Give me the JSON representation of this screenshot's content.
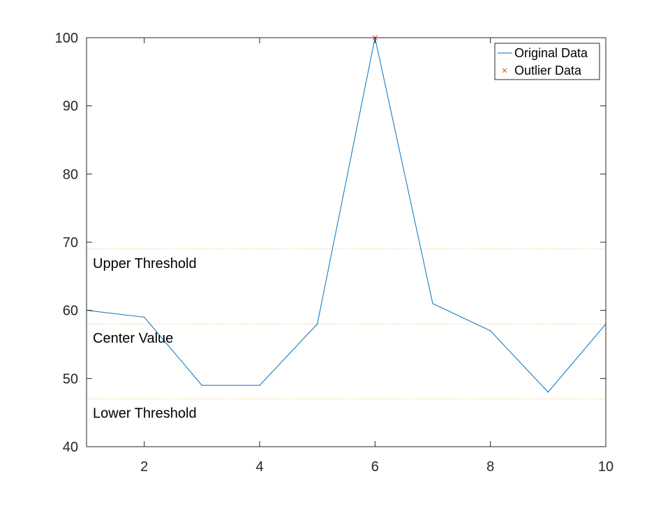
{
  "chart_data": {
    "type": "line",
    "title": "",
    "xlabel": "",
    "ylabel": "",
    "xlim": [
      1,
      10
    ],
    "ylim": [
      40,
      100
    ],
    "x_ticks": [
      2,
      4,
      6,
      8,
      10
    ],
    "y_ticks": [
      40,
      50,
      60,
      70,
      80,
      90,
      100
    ],
    "x_tick_labels": [
      "2",
      "4",
      "6",
      "8",
      "10"
    ],
    "y_tick_labels": [
      "40",
      "50",
      "60",
      "70",
      "80",
      "90",
      "100"
    ],
    "grid": false,
    "legend_position": "top-right",
    "series": [
      {
        "name": "Original Data",
        "type": "line",
        "color": "#0072BD",
        "x": [
          1,
          2,
          3,
          4,
          5,
          6,
          7,
          8,
          9,
          10
        ],
        "y": [
          60,
          59,
          49,
          49,
          58,
          100,
          61,
          57,
          48,
          58
        ]
      },
      {
        "name": "Outlier Data",
        "type": "scatter",
        "marker": "x",
        "color": "#D95319",
        "x": [
          6
        ],
        "y": [
          100
        ]
      }
    ],
    "reference_lines": [
      {
        "label": "Upper Threshold",
        "y": 69,
        "color": "#EDB120",
        "style": "dotted"
      },
      {
        "label": "Center Value",
        "y": 58,
        "color": "#EDB120",
        "style": "dotted"
      },
      {
        "label": "Lower Threshold",
        "y": 47,
        "color": "#EDB120",
        "style": "dotted"
      }
    ]
  }
}
